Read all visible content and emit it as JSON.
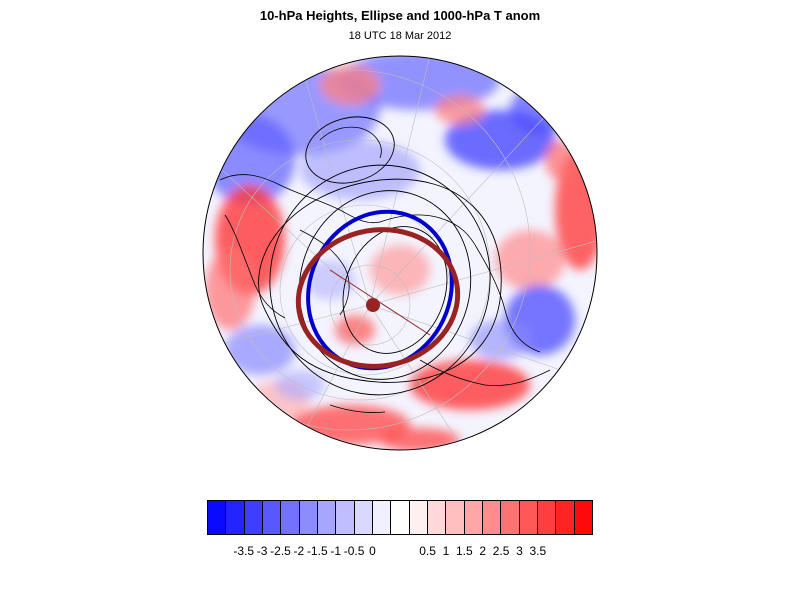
{
  "figure": {
    "title": "10-hPa Heights, Ellipse and 1000-hPa T anom",
    "subtitle": "18 UTC 18 Mar 2012"
  },
  "map": {
    "projection": "polar-stereographic-north",
    "layers": [
      "1000-hPa temperature anomaly shading",
      "10-hPa height contours",
      "fitted vortex ellipse",
      "ellipse centroid",
      "coastlines",
      "lat-lon graticule"
    ],
    "ellipse_colors": {
      "blue": "#0000cc",
      "red": "#992222"
    }
  },
  "colorbar": {
    "colors": [
      "#0a0aff",
      "#2424ff",
      "#3e3eff",
      "#5858ff",
      "#7272ff",
      "#8c8cff",
      "#a6a6ff",
      "#bfbfff",
      "#d9d9ff",
      "#f0f0ff",
      "#ffffff",
      "#fff0f0",
      "#ffd9d9",
      "#ffbfbf",
      "#ffa6a6",
      "#ff8c8c",
      "#ff7272",
      "#ff5858",
      "#ff3e3e",
      "#ff2424",
      "#ff0a0a"
    ],
    "labels": [
      "-3.5",
      "-3",
      "-2.5",
      "-2",
      "-1.5",
      "-1",
      "-0.5",
      "0",
      "0.5",
      "1",
      "1.5",
      "2",
      "2.5",
      "3",
      "3.5"
    ],
    "label_boundaries": [
      2,
      3,
      4,
      5,
      6,
      7,
      8,
      9,
      12,
      13,
      14,
      15,
      16,
      17,
      18
    ]
  }
}
